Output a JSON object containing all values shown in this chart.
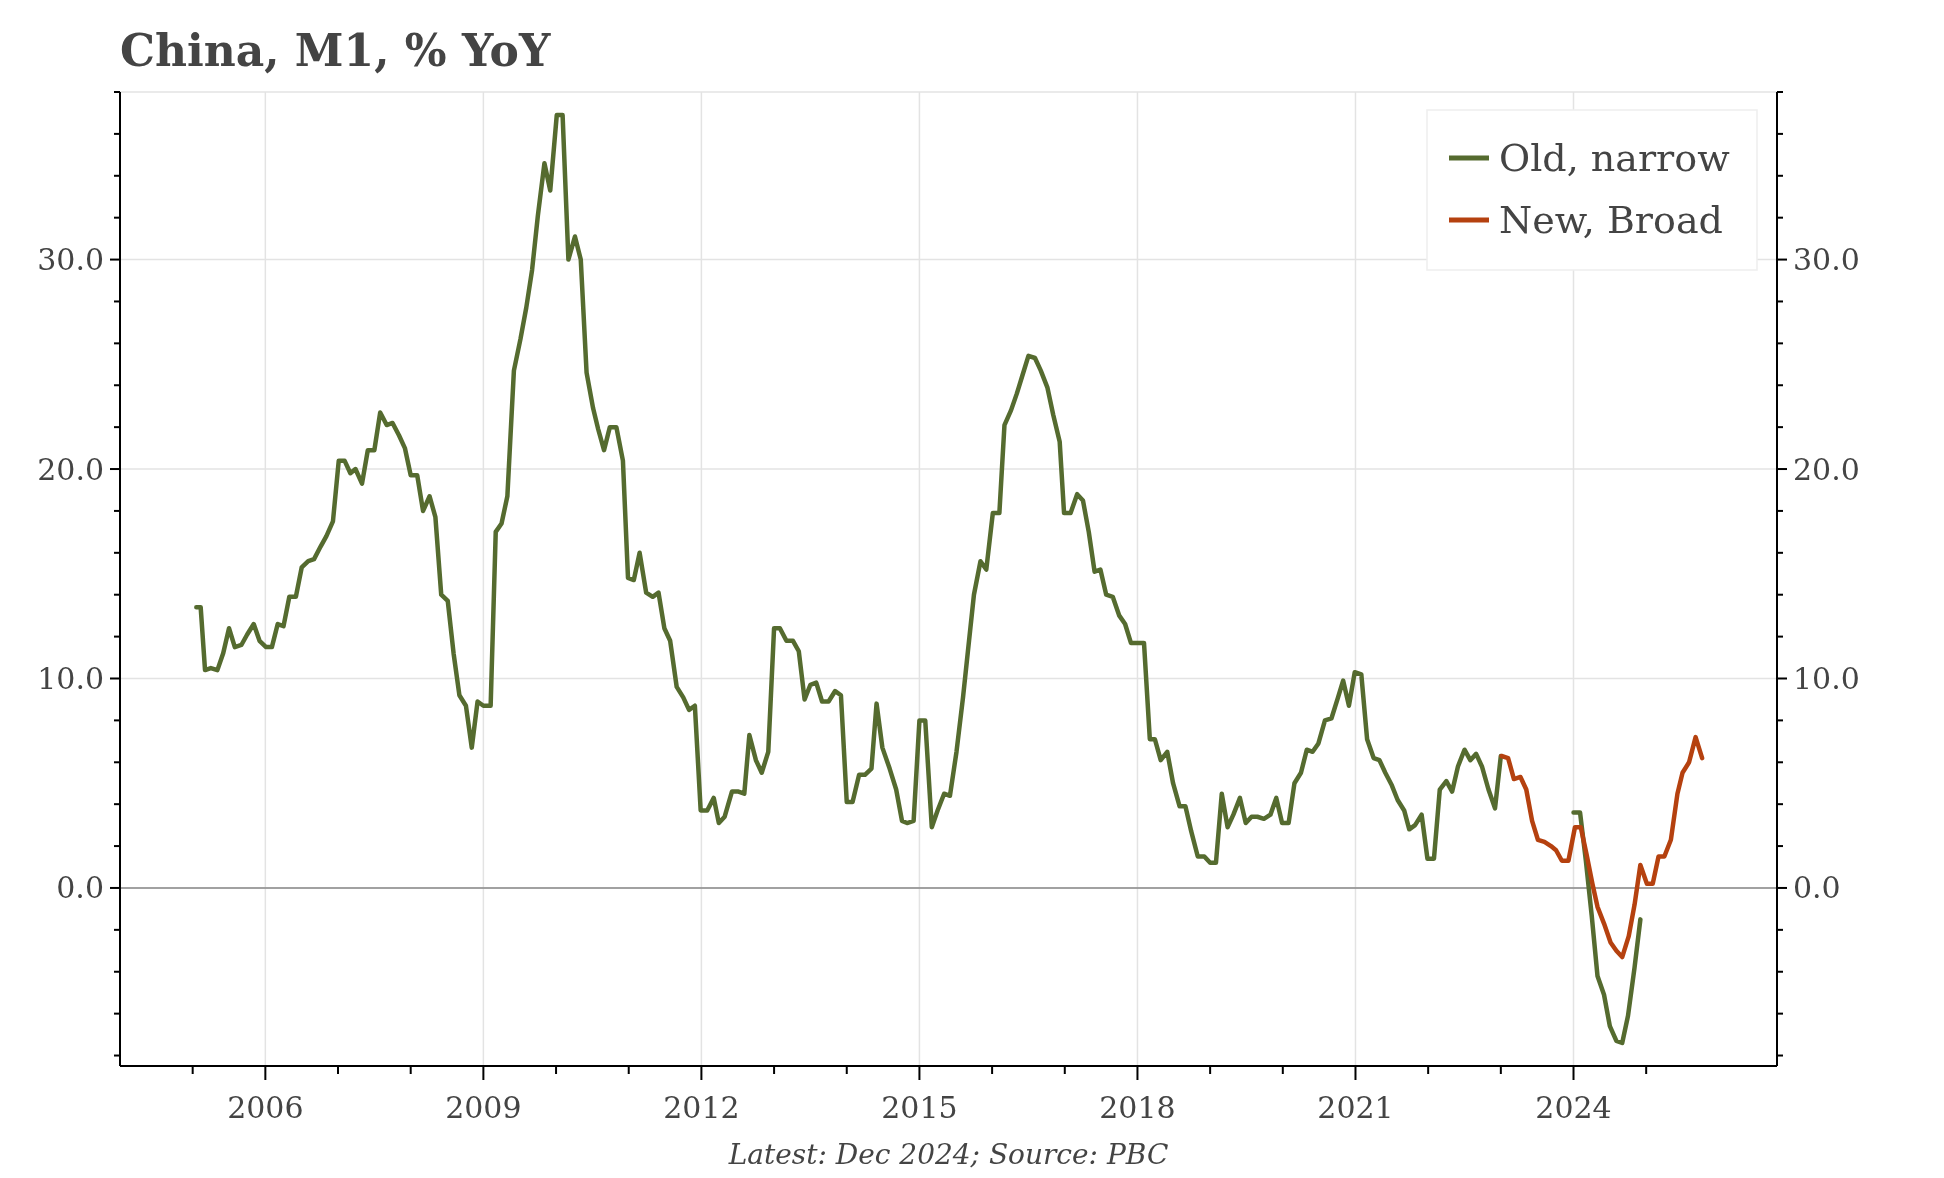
{
  "chart_data": {
    "type": "line",
    "title": "China, M1, % YoY",
    "annotations": [
      "Latest: Dec 2024; Source: PBC"
    ],
    "xlim": [
      2004,
      2026.8
    ],
    "xticks": [
      {
        "value": 2005,
        "label": null
      },
      2006,
      {
        "value": 2007,
        "label": null
      },
      {
        "value": 2008,
        "label": null
      },
      2009,
      {
        "value": 2010,
        "label": null
      },
      {
        "value": 2011,
        "label": null
      },
      2012,
      {
        "value": 2013,
        "label": null
      },
      {
        "value": 2014,
        "label": null
      },
      2015,
      {
        "value": 2016,
        "label": null
      },
      {
        "value": 2017,
        "label": null
      },
      2018,
      {
        "value": 2019,
        "label": null
      },
      {
        "value": 2020,
        "label": null
      },
      2021,
      {
        "value": 2022,
        "label": null
      },
      {
        "value": 2023,
        "label": null
      },
      2024,
      {
        "value": 2025,
        "label": null
      }
    ],
    "ylim": [
      -8.5,
      38
    ],
    "yticks": [
      {
        "value": -8,
        "label": null
      },
      {
        "value": -6,
        "label": null
      },
      {
        "value": -4,
        "label": null
      },
      {
        "value": -2,
        "label": null
      },
      {
        "value": 0,
        "label": "0.0"
      },
      {
        "value": 2,
        "label": null
      },
      {
        "value": 4,
        "label": null
      },
      {
        "value": 6,
        "label": null
      },
      {
        "value": 8,
        "label": null
      },
      {
        "value": 10,
        "label": "10.0"
      },
      {
        "value": 12,
        "label": null
      },
      {
        "value": 14,
        "label": null
      },
      {
        "value": 16,
        "label": null
      },
      {
        "value": 18,
        "label": null
      },
      {
        "value": 20,
        "label": "20.0"
      },
      {
        "value": 22,
        "label": null
      },
      {
        "value": 24,
        "label": null
      },
      {
        "value": 26,
        "label": null
      },
      {
        "value": 28,
        "label": null
      },
      {
        "value": 30,
        "label": "30.0"
      },
      {
        "value": 32,
        "label": null
      },
      {
        "value": 34,
        "label": null
      },
      {
        "value": 36,
        "label": null
      },
      {
        "value": 38,
        "label": null
      }
    ],
    "y2lim": [
      -8.5,
      38
    ],
    "y2ticks": [
      {
        "value": -8,
        "label": null
      },
      {
        "value": -6,
        "label": null
      },
      {
        "value": -4,
        "label": null
      },
      {
        "value": -2,
        "label": null
      },
      {
        "value": 0,
        "label": "0.0"
      },
      {
        "value": 2,
        "label": null
      },
      {
        "value": 4,
        "label": null
      },
      {
        "value": 6,
        "label": null
      },
      {
        "value": 8,
        "label": null
      },
      {
        "value": 10,
        "label": "10.0"
      },
      {
        "value": 12,
        "label": null
      },
      {
        "value": 14,
        "label": null
      },
      {
        "value": 16,
        "label": null
      },
      {
        "value": 18,
        "label": null
      },
      {
        "value": 20,
        "label": "20.0"
      },
      {
        "value": 22,
        "label": null
      },
      {
        "value": 24,
        "label": null
      },
      {
        "value": 26,
        "label": null
      },
      {
        "value": 28,
        "label": null
      },
      {
        "value": 30,
        "label": "30.0"
      },
      {
        "value": 32,
        "label": null
      },
      {
        "value": 34,
        "label": null
      },
      {
        "value": 36,
        "label": null
      },
      {
        "value": 38,
        "label": null
      }
    ],
    "grid": true,
    "legend": "top right",
    "line_style": "solid",
    "ref_lines": [
      {
        "axis": "y",
        "value": 0,
        "label": null,
        "color": "#888888"
      }
    ],
    "series": [
      {
        "name": "Old, narrow",
        "color": "#556b2f",
        "x": [
          2005.05,
          2005.11,
          2005.17,
          2005.25,
          2005.34,
          2005.42,
          2005.5,
          2005.58,
          2005.67,
          2005.75,
          2005.84,
          2005.92,
          2006.01,
          2006.09,
          2006.17,
          2006.25,
          2006.33,
          2006.42,
          2006.5,
          2006.59,
          2006.67,
          2006.76,
          2006.84,
          2006.93,
          2007.01,
          2007.09,
          2007.17,
          2007.24,
          2007.33,
          2007.41,
          2007.5,
          2007.58,
          2007.67,
          2007.75,
          2007.84,
          2007.92,
          2008.0,
          2008.09,
          2008.17,
          2008.26,
          2008.34,
          2008.42,
          2008.51,
          2008.59,
          2008.67,
          2008.76,
          2008.84,
          2008.92,
          2009.0,
          2009.1,
          2009.17,
          2009.25,
          2009.33,
          2009.42,
          2009.51,
          2009.59,
          2009.67,
          2009.75,
          2009.84,
          2009.92,
          2010.01,
          2010.09,
          2010.17,
          2010.26,
          2010.34,
          2010.42,
          2010.51,
          2010.58,
          2010.66,
          2010.74,
          2010.83,
          2010.92,
          2010.99,
          2011.07,
          2011.15,
          2011.24,
          2011.33,
          2011.41,
          2011.49,
          2011.57,
          2011.66,
          2011.75,
          2011.83,
          2011.91,
          2011.99,
          2012.08,
          2012.17,
          2012.24,
          2012.32,
          2012.42,
          2012.51,
          2012.59,
          2012.66,
          2012.75,
          2012.83,
          2012.92,
          2013.0,
          2013.08,
          2013.17,
          2013.26,
          2013.34,
          2013.42,
          2013.5,
          2013.58,
          2013.66,
          2013.75,
          2013.84,
          2013.92,
          2014.0,
          2014.08,
          2014.17,
          2014.25,
          2014.34,
          2014.41,
          2014.49,
          2014.59,
          2014.68,
          2014.76,
          2014.83,
          2014.92,
          2015.0,
          2015.08,
          2015.17,
          2015.25,
          2015.34,
          2015.42,
          2015.51,
          2015.6,
          2015.67,
          2015.75,
          2015.84,
          2015.92,
          2016.01,
          2016.1,
          2016.17,
          2016.26,
          2016.34,
          2016.42,
          2016.5,
          2016.59,
          2016.67,
          2016.76,
          2016.84,
          2016.93,
          2016.99,
          2017.08,
          2017.17,
          2017.25,
          2017.33,
          2017.41,
          2017.49,
          2017.57,
          2017.66,
          2017.75,
          2017.83,
          2017.91,
          2018.0,
          2018.09,
          2018.17,
          2018.24,
          2018.32,
          2018.41,
          2018.49,
          2018.58,
          2018.66,
          2018.74,
          2018.83,
          2018.92,
          2019.0,
          2019.08,
          2019.16,
          2019.24,
          2019.32,
          2019.41,
          2019.49,
          2019.57,
          2019.65,
          2019.74,
          2019.83,
          2019.91,
          2019.99,
          2020.08,
          2020.16,
          2020.25,
          2020.33,
          2020.41,
          2020.49,
          2020.58,
          2020.67,
          2020.76,
          2020.83,
          2020.91,
          2020.99,
          2021.08,
          2021.16,
          2021.25,
          2021.33,
          2021.41,
          2021.5,
          2021.58,
          2021.67,
          2021.74,
          2021.82,
          2021.91,
          2021.99,
          2022.08,
          2022.16,
          2022.25,
          2022.33,
          2022.41,
          2022.5,
          2022.58,
          2022.66,
          2022.74,
          2022.83,
          2022.92,
          2023.0,
          2023.5,
          2024.0,
          2024.09,
          2024.17,
          2024.25,
          2024.33,
          2024.42,
          2024.5,
          2024.59,
          2024.67,
          2024.75,
          2024.84,
          2024.92
        ],
        "values": [
          13.4,
          13.4,
          10.4,
          10.5,
          10.4,
          11.2,
          12.4,
          11.5,
          11.6,
          12.1,
          12.6,
          11.8,
          11.5,
          11.5,
          12.6,
          12.5,
          13.9,
          13.9,
          15.3,
          15.6,
          15.7,
          16.3,
          16.8,
          17.5,
          20.4,
          20.4,
          19.8,
          20.0,
          19.3,
          20.9,
          20.9,
          22.7,
          22.1,
          22.2,
          21.6,
          21.0,
          19.7,
          19.7,
          18.0,
          18.7,
          17.7,
          14.0,
          13.7,
          11.2,
          9.2,
          8.7,
          6.7,
          8.9,
          8.7,
          8.7,
          17.0,
          17.4,
          18.7,
          24.7,
          26.2,
          27.7,
          29.5,
          32.1,
          34.6,
          33.3,
          36.9,
          36.9,
          30.0,
          31.1,
          30.0,
          24.6,
          22.9,
          21.9,
          20.9,
          22.0,
          22.0,
          20.4,
          14.8,
          14.7,
          16.0,
          14.1,
          13.9,
          14.1,
          12.4,
          11.8,
          9.6,
          9.1,
          8.5,
          8.7,
          3.7,
          3.7,
          4.3,
          3.1,
          3.4,
          4.6,
          4.6,
          4.5,
          7.3,
          6.1,
          5.5,
          6.5,
          12.4,
          12.4,
          11.8,
          11.8,
          11.3,
          9.0,
          9.7,
          9.8,
          8.9,
          8.9,
          9.4,
          9.2,
          4.1,
          4.1,
          5.4,
          5.4,
          5.7,
          8.8,
          6.7,
          5.7,
          4.7,
          3.2,
          3.1,
          3.2,
          8.0,
          8.0,
          2.9,
          3.7,
          4.5,
          4.4,
          6.5,
          9.1,
          11.4,
          14.0,
          15.6,
          15.2,
          17.9,
          17.9,
          22.1,
          22.8,
          23.6,
          24.5,
          25.4,
          25.3,
          24.7,
          23.9,
          22.6,
          21.3,
          17.9,
          17.9,
          18.8,
          18.5,
          17.0,
          15.1,
          15.2,
          14.0,
          13.9,
          13.0,
          12.6,
          11.7,
          11.7,
          11.7,
          7.1,
          7.1,
          6.1,
          6.5,
          5.0,
          3.9,
          3.9,
          2.7,
          1.5,
          1.5,
          1.2,
          1.2,
          4.5,
          2.9,
          3.5,
          4.3,
          3.1,
          3.4,
          3.4,
          3.3,
          3.5,
          4.3,
          3.1,
          3.1,
          5.0,
          5.5,
          6.6,
          6.5,
          6.9,
          8.0,
          8.1,
          9.1,
          9.9,
          8.7,
          10.3,
          10.2,
          7.1,
          6.2,
          6.1,
          5.5,
          4.9,
          4.2,
          3.7,
          2.8,
          3.0,
          3.5,
          1.4,
          1.4,
          4.7,
          5.1,
          4.6,
          5.8,
          6.6,
          6.1,
          6.4,
          5.8,
          4.7,
          3.8,
          6.3,
          null,
          3.6,
          3.6,
          1.3,
          -1.3,
          -4.2,
          -5.1,
          -6.6,
          -7.3,
          -7.4,
          -6.1,
          -3.8,
          -1.5
        ]
      },
      {
        "name": "New, Broad",
        "color": "#b5410f",
        "x": [
          2023.01,
          2023.1,
          2023.18,
          2023.27,
          2023.35,
          2023.43,
          2023.51,
          2023.6,
          2023.69,
          2023.76,
          2023.84,
          2023.93,
          2024.02,
          2024.1,
          2024.18,
          2024.26,
          2024.33,
          2024.42,
          2024.51,
          2024.59,
          2024.67,
          2024.76,
          2024.84,
          2024.92,
          2025.01,
          2025.09,
          2025.17,
          2025.25,
          2025.34,
          2025.43,
          2025.5,
          2025.59,
          2025.68,
          2025.77
        ],
        "values": [
          6.3,
          6.2,
          5.2,
          5.3,
          4.7,
          3.2,
          2.3,
          2.2,
          2.0,
          1.8,
          1.3,
          1.3,
          2.9,
          2.9,
          1.6,
          0.2,
          -0.9,
          -1.7,
          -2.6,
          -3.0,
          -3.3,
          -2.3,
          -0.8,
          1.1,
          0.2,
          0.2,
          1.5,
          1.5,
          2.3,
          4.5,
          5.5,
          6.0,
          7.2,
          6.2
        ]
      }
    ]
  }
}
